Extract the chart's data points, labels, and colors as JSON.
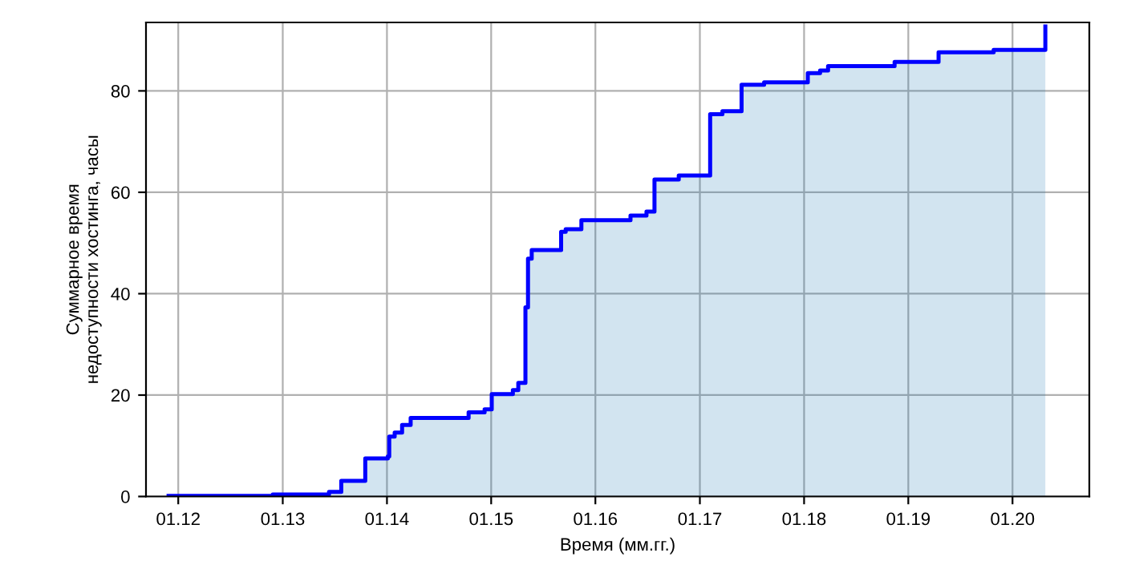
{
  "chart_data": {
    "type": "step",
    "xlabel": "Время (мм.гг.)",
    "ylabel": "Суммарное время\nнедоступности хостинга, часы",
    "x": [
      "2011-11-28",
      "2012-11-27",
      "2013-06-12",
      "2013-07-25",
      "2013-10-17",
      "2014-01-04",
      "2014-01-09",
      "2014-01-28",
      "2014-02-23",
      "2014-03-25",
      "2014-10-14",
      "2014-12-09",
      "2015-01-03",
      "2015-03-18",
      "2015-04-06",
      "2015-05-01",
      "2015-05-10",
      "2015-05-23",
      "2015-09-03",
      "2015-09-19",
      "2015-11-13",
      "2016-05-03",
      "2016-06-28",
      "2016-07-26",
      "2016-10-19",
      "2017-02-06",
      "2017-03-21",
      "2017-05-27",
      "2017-08-14",
      "2018-01-14",
      "2018-02-26",
      "2018-03-26",
      "2018-11-14",
      "2019-04-17",
      "2019-10-27",
      "2020-04-25"
    ],
    "series": [
      {
        "color": "#0000ff",
        "values": [
          0.1,
          0.4,
          0.9,
          3.1,
          7.5,
          7.9,
          11.8,
          12.6,
          14.1,
          15.5,
          16.6,
          17.2,
          20.2,
          21.0,
          22.4,
          37.3,
          46.9,
          48.6,
          52.2,
          52.7,
          54.5,
          55.4,
          56.2,
          62.5,
          63.3,
          75.4,
          76.0,
          81.2,
          81.7,
          83.5,
          84.0,
          84.9,
          85.7,
          87.6,
          88.1,
          92.7
        ]
      }
    ],
    "xlim": [
      "2011-09-10",
      "2020-09-26"
    ],
    "xticks": [
      {
        "value": "2012-01-01",
        "label": "01.12"
      },
      {
        "value": "2013-01-01",
        "label": "01.13"
      },
      {
        "value": "2014-01-01",
        "label": "01.14"
      },
      {
        "value": "2015-01-01",
        "label": "01.15"
      },
      {
        "value": "2016-01-01",
        "label": "01.16"
      },
      {
        "value": "2017-01-01",
        "label": "01.17"
      },
      {
        "value": "2018-01-01",
        "label": "01.18"
      },
      {
        "value": "2019-01-01",
        "label": "01.19"
      },
      {
        "value": "2020-01-01",
        "label": "01.20"
      }
    ],
    "ylim": [
      0,
      93.5
    ],
    "yticks": [
      0,
      20,
      40,
      60,
      80
    ],
    "grid": true
  }
}
